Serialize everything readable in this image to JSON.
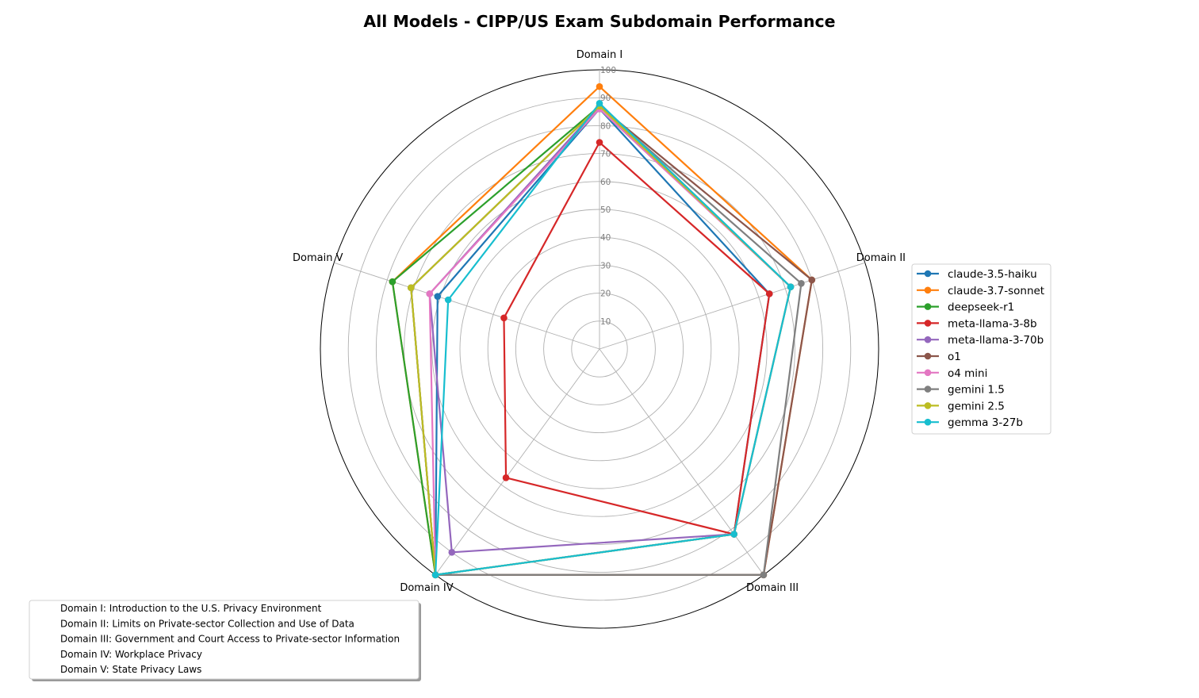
{
  "chart_data": {
    "type": "radar",
    "title": "All Models - CIPP/US Exam Subdomain Performance",
    "axes": [
      "Domain I",
      "Domain II",
      "Domain III",
      "Domain IV",
      "Domain V"
    ],
    "rlim": [
      0,
      100
    ],
    "rticks": [
      10,
      20,
      30,
      40,
      50,
      60,
      70,
      80,
      90,
      100
    ],
    "rtick_labels": [
      "10",
      "20",
      "30",
      "40",
      "50",
      "60",
      "70",
      "80",
      "90",
      "100"
    ],
    "grid": true,
    "legend_position": "right",
    "series": [
      {
        "name": "claude-3.5-haiku",
        "color": "#1f77b4",
        "values": [
          86,
          64,
          82,
          100,
          61
        ]
      },
      {
        "name": "claude-3.7-sonnet",
        "color": "#ff7f0e",
        "values": [
          94,
          80,
          100,
          100,
          78
        ]
      },
      {
        "name": "deepseek-r1",
        "color": "#2ca02c",
        "values": [
          87,
          72,
          82,
          100,
          78
        ]
      },
      {
        "name": "meta-llama-3-8b",
        "color": "#d62728",
        "values": [
          74,
          64,
          82,
          57,
          36
        ]
      },
      {
        "name": "meta-llama-3-70b",
        "color": "#9467bd",
        "values": [
          87,
          72,
          82,
          90,
          64
        ]
      },
      {
        "name": "o1",
        "color": "#8c564b",
        "values": [
          87,
          80,
          100,
          100,
          71
        ]
      },
      {
        "name": "o4 mini",
        "color": "#e377c2",
        "values": [
          86,
          72,
          82,
          100,
          64
        ]
      },
      {
        "name": "gemini 1.5",
        "color": "#7f7f7f",
        "values": [
          87,
          76,
          100,
          100,
          71
        ]
      },
      {
        "name": "gemini 2.5",
        "color": "#bcbd22",
        "values": [
          87,
          72,
          82,
          100,
          71
        ]
      },
      {
        "name": "gemma 3-27b",
        "color": "#17becf",
        "values": [
          88,
          72,
          82,
          100,
          57
        ]
      }
    ],
    "domain_notes": [
      "Domain I: Introduction to the U.S. Privacy Environment",
      "Domain II: Limits on Private-sector Collection and Use of Data",
      "Domain III: Government and Court Access to Private-sector Information",
      "Domain IV: Workplace Privacy",
      "Domain V: State Privacy Laws"
    ]
  }
}
